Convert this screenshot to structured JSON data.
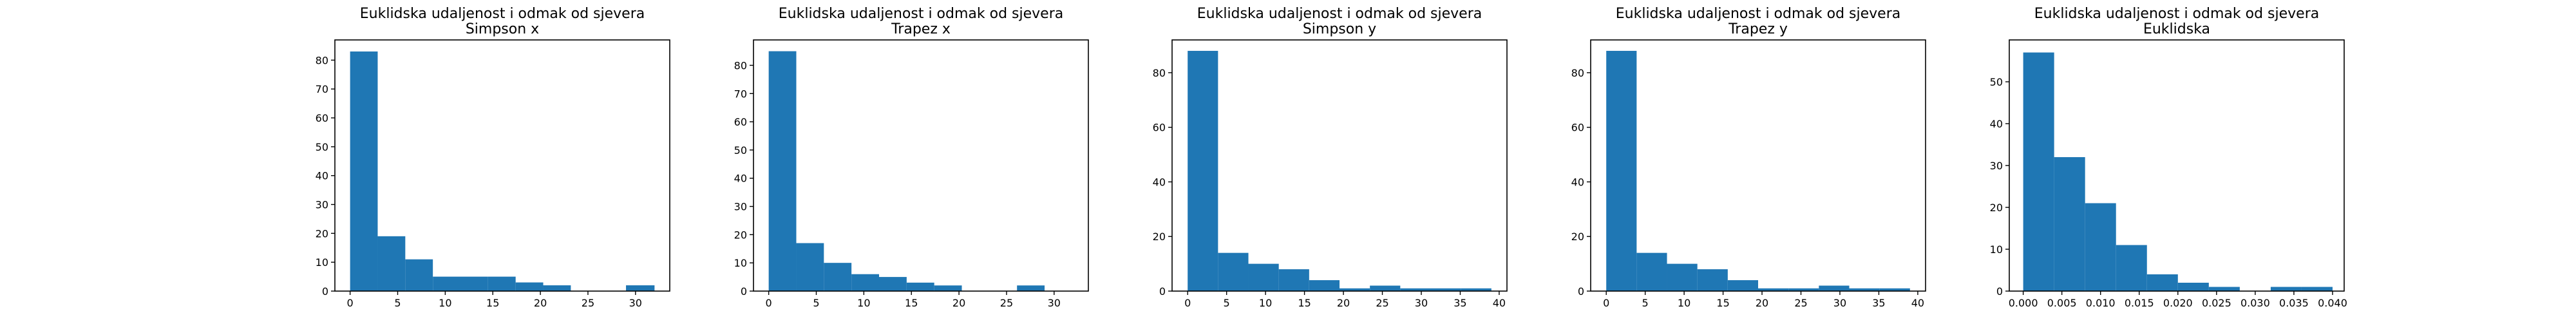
{
  "figure": {
    "bar_color": "#1f77b4",
    "background": "#ffffff"
  },
  "chart_data": [
    {
      "type": "bar",
      "title": "Euklidska udaljenost i odmak od sjevera",
      "subtitle": "Simpson x",
      "xlabel": "",
      "ylabel": "",
      "xlim": [
        -1.6,
        33.6
      ],
      "ylim": [
        0,
        87
      ],
      "xticks": [
        "0",
        "5",
        "10",
        "15",
        "20",
        "25",
        "30"
      ],
      "yticks": [
        "0",
        "10",
        "20",
        "30",
        "40",
        "50",
        "60",
        "70",
        "80"
      ],
      "bins": [
        [
          0.0,
          2.9
        ],
        [
          2.9,
          5.8
        ],
        [
          5.8,
          8.7
        ],
        [
          8.7,
          11.6
        ],
        [
          11.6,
          14.5
        ],
        [
          14.5,
          17.4
        ],
        [
          17.4,
          20.3
        ],
        [
          20.3,
          23.2
        ],
        [
          23.2,
          26.1
        ],
        [
          26.1,
          29.0
        ],
        [
          29.0,
          32.0
        ]
      ],
      "values": [
        83,
        19,
        11,
        5,
        5,
        5,
        3,
        2,
        0,
        0,
        2
      ]
    },
    {
      "type": "bar",
      "title": "Euklidska udaljenost i odmak od sjevera",
      "subtitle": "Trapez x",
      "xlabel": "",
      "ylabel": "",
      "xlim": [
        -1.6,
        33.6
      ],
      "ylim": [
        0,
        89
      ],
      "xticks": [
        "0",
        "5",
        "10",
        "15",
        "20",
        "25",
        "30"
      ],
      "yticks": [
        "0",
        "10",
        "20",
        "30",
        "40",
        "50",
        "60",
        "70",
        "80"
      ],
      "bins": [
        [
          0.0,
          2.9
        ],
        [
          2.9,
          5.8
        ],
        [
          5.8,
          8.7
        ],
        [
          8.7,
          11.6
        ],
        [
          11.6,
          14.5
        ],
        [
          14.5,
          17.4
        ],
        [
          17.4,
          20.3
        ],
        [
          20.3,
          23.2
        ],
        [
          23.2,
          26.1
        ],
        [
          26.1,
          29.0
        ],
        [
          29.0,
          32.0
        ]
      ],
      "values": [
        85,
        17,
        10,
        6,
        5,
        3,
        2,
        0,
        0,
        2,
        0
      ]
    },
    {
      "type": "bar",
      "title": "Euklidska udaljenost i odmak od sjevera",
      "subtitle": "Simpson y",
      "xlabel": "",
      "ylabel": "",
      "xlim": [
        -2.0,
        41.0
      ],
      "ylim": [
        0,
        92
      ],
      "xticks": [
        "0",
        "5",
        "10",
        "15",
        "20",
        "25",
        "30",
        "35",
        "40"
      ],
      "yticks": [
        "0",
        "20",
        "40",
        "60",
        "80"
      ],
      "bins": [
        [
          0.0,
          3.9
        ],
        [
          3.9,
          7.8
        ],
        [
          7.8,
          11.7
        ],
        [
          11.7,
          15.6
        ],
        [
          15.6,
          19.5
        ],
        [
          19.5,
          23.4
        ],
        [
          23.4,
          27.3
        ],
        [
          27.3,
          31.2
        ],
        [
          31.2,
          35.1
        ],
        [
          35.1,
          39.0
        ]
      ],
      "values": [
        88,
        14,
        10,
        8,
        4,
        1,
        2,
        1,
        1,
        1
      ]
    },
    {
      "type": "bar",
      "title": "Euklidska udaljenost i odmak od sjevera",
      "subtitle": "Trapez y",
      "xlabel": "",
      "ylabel": "",
      "xlim": [
        -2.0,
        41.0
      ],
      "ylim": [
        0,
        92
      ],
      "xticks": [
        "0",
        "5",
        "10",
        "15",
        "20",
        "25",
        "30",
        "35",
        "40"
      ],
      "yticks": [
        "0",
        "20",
        "40",
        "60",
        "80"
      ],
      "bins": [
        [
          0.0,
          3.9
        ],
        [
          3.9,
          7.8
        ],
        [
          7.8,
          11.7
        ],
        [
          11.7,
          15.6
        ],
        [
          15.6,
          19.5
        ],
        [
          19.5,
          23.4
        ],
        [
          23.4,
          27.3
        ],
        [
          27.3,
          31.2
        ],
        [
          31.2,
          35.1
        ],
        [
          35.1,
          39.0
        ]
      ],
      "values": [
        88,
        14,
        10,
        8,
        4,
        1,
        1,
        2,
        1,
        1
      ]
    },
    {
      "type": "bar",
      "title": "Euklidska udaljenost i odmak od sjevera",
      "subtitle": "Euklidska",
      "xlabel": "",
      "ylabel": "",
      "xlim": [
        -0.0018,
        0.0415
      ],
      "ylim": [
        0,
        60
      ],
      "xticks": [
        "0.000",
        "0.005",
        "0.010",
        "0.015",
        "0.020",
        "0.025",
        "0.030",
        "0.035",
        "0.040"
      ],
      "yticks": [
        "0",
        "10",
        "20",
        "30",
        "40",
        "50"
      ],
      "bins": [
        [
          0.0,
          0.004
        ],
        [
          0.004,
          0.008
        ],
        [
          0.008,
          0.012
        ],
        [
          0.012,
          0.016
        ],
        [
          0.016,
          0.02
        ],
        [
          0.02,
          0.024
        ],
        [
          0.024,
          0.028
        ],
        [
          0.028,
          0.032
        ],
        [
          0.032,
          0.036
        ],
        [
          0.036,
          0.04
        ]
      ],
      "values": [
        57,
        32,
        21,
        11,
        4,
        2,
        1,
        0,
        1,
        1
      ]
    }
  ]
}
